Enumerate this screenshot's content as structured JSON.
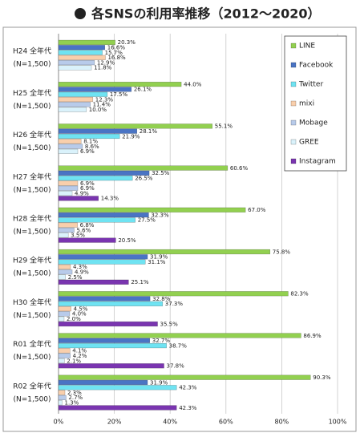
{
  "chart_data": {
    "type": "hbar",
    "title": "各SNSの利用率推移（2012～2020）",
    "categories": [
      "H24 全年代",
      "H25 全年代",
      "H26 全年代",
      "H27 全年代",
      "H28 全年代",
      "H29 全年代",
      "H30 全年代",
      "R01 全年代",
      "R02 全年代"
    ],
    "category_sublabels": [
      "(N=1,500)",
      "(N=1,500)",
      "(N=1,500)",
      "(N=1,500)",
      "(N=1,500)",
      "(N=1,500)",
      "(N=1,500)",
      "(N=1,500)",
      "(N=1,500)"
    ],
    "series": [
      {
        "name": "LINE",
        "color": "#92d050",
        "values": [
          20.3,
          44.0,
          55.1,
          60.6,
          67.0,
          75.8,
          82.3,
          86.9,
          90.3
        ],
        "value_labels": [
          "20.3%",
          "44.0%",
          "55.1%",
          "60.6%",
          "67.0%",
          "75.8%",
          "82.3%",
          "86.9%",
          "90.3%"
        ]
      },
      {
        "name": "Facebook",
        "color": "#4a74c4",
        "values": [
          16.6,
          26.1,
          28.1,
          32.5,
          32.3,
          31.9,
          32.8,
          32.7,
          31.9
        ],
        "value_labels": [
          "16.6%",
          "26.1%",
          "28.1%",
          "32.5%",
          "32.3%",
          "31.9%",
          "32.8%",
          "32.7%",
          "31.9%"
        ]
      },
      {
        "name": "Twitter",
        "color": "#6fe3f2",
        "values": [
          15.7,
          17.5,
          21.9,
          26.5,
          27.5,
          31.1,
          37.3,
          38.7,
          42.3
        ],
        "value_labels": [
          "15.7%",
          "17.5%",
          "21.9%",
          "26.5%",
          "27.5%",
          "31.1%",
          "37.3%",
          "38.7%",
          "42.3%"
        ]
      },
      {
        "name": "mixi",
        "color": "#f9cfac",
        "values": [
          16.8,
          12.3,
          8.1,
          6.9,
          6.8,
          4.3,
          4.5,
          4.1,
          2.3
        ],
        "value_labels": [
          "16.8%",
          "12.3%",
          "8.1%",
          "6.9%",
          "6.8%",
          "4.3%",
          "4.5%",
          "4.1%",
          "2.3%"
        ]
      },
      {
        "name": "Mobage",
        "color": "#b8cbea",
        "values": [
          12.9,
          11.4,
          8.6,
          6.9,
          5.6,
          4.9,
          4.0,
          4.2,
          2.7
        ],
        "value_labels": [
          "12.9%",
          "11.4%",
          "8.6%",
          "6.9%",
          "5.6%",
          "4.9%",
          "4.0%",
          "4.2%",
          "2.7%"
        ]
      },
      {
        "name": "GREE",
        "color": "#daf2fb",
        "values": [
          11.8,
          10.0,
          6.9,
          4.9,
          3.5,
          2.5,
          2.0,
          2.1,
          1.3
        ],
        "value_labels": [
          "11.8%",
          "10.0%",
          "6.9%",
          "4.9%",
          "3.5%",
          "2.5%",
          "2.0%",
          "2.1%",
          "1.3%"
        ]
      },
      {
        "name": "Instagram",
        "color": "#7a35b0",
        "values": [
          null,
          null,
          null,
          14.3,
          20.5,
          25.1,
          35.5,
          37.8,
          42.3
        ],
        "value_labels": [
          null,
          null,
          null,
          "14.3%",
          "20.5%",
          "25.1%",
          "35.5%",
          "37.8%",
          "42.3%"
        ]
      }
    ],
    "xlim": [
      0,
      100
    ],
    "xticks": [
      {
        "value": 0,
        "label": "0%"
      },
      {
        "value": 20,
        "label": "20%"
      },
      {
        "value": 40,
        "label": "40%"
      },
      {
        "value": 60,
        "label": "60%"
      },
      {
        "value": 80,
        "label": "80%"
      },
      {
        "value": 100,
        "label": "100%"
      }
    ],
    "grid": true,
    "legend": "top-right"
  }
}
